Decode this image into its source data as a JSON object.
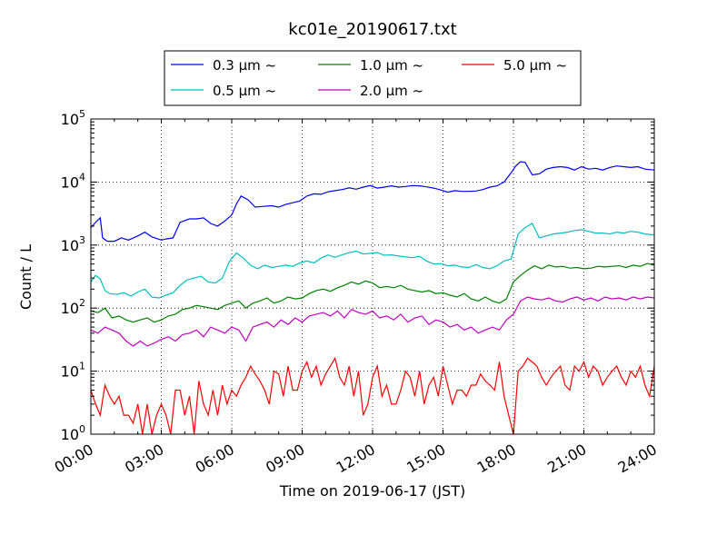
{
  "chart_data": {
    "type": "line",
    "title": "kc01e_20190617.txt",
    "xlabel": "Time on 2019-06-17 (JST)",
    "ylabel": "Count / L",
    "yscale": "log",
    "ylim": [
      1,
      100000
    ],
    "xlim_hours": [
      0,
      24
    ],
    "x_ticks": [
      "00:00",
      "03:00",
      "06:00",
      "09:00",
      "12:00",
      "15:00",
      "18:00",
      "21:00",
      "24:00"
    ],
    "y_ticks": [
      {
        "value": 1,
        "base": "10",
        "exp": "0"
      },
      {
        "value": 10,
        "base": "10",
        "exp": "1"
      },
      {
        "value": 100,
        "base": "10",
        "exp": "2"
      },
      {
        "value": 1000,
        "base": "10",
        "exp": "3"
      },
      {
        "value": 10000,
        "base": "10",
        "exp": "4"
      },
      {
        "value": 100000,
        "base": "10",
        "exp": "5"
      }
    ],
    "grid": true,
    "legend_position": "top-center",
    "series": [
      {
        "name": "0.3 μm ~",
        "color": "#0000ff",
        "x": [
          0,
          0.25,
          0.4,
          0.5,
          0.7,
          1.0,
          1.3,
          1.6,
          2.0,
          2.3,
          2.6,
          3.0,
          3.2,
          3.5,
          3.8,
          4.2,
          4.5,
          4.8,
          5.1,
          5.4,
          5.7,
          6.0,
          6.2,
          6.4,
          6.7,
          7.0,
          7.3,
          7.7,
          8.0,
          8.3,
          8.6,
          8.9,
          9.2,
          9.5,
          9.8,
          10.1,
          10.4,
          10.7,
          11.0,
          11.3,
          11.6,
          11.9,
          12.2,
          12.5,
          12.8,
          13.1,
          13.4,
          13.7,
          14.0,
          14.3,
          14.6,
          14.9,
          15.2,
          15.5,
          15.8,
          16.1,
          16.4,
          16.7,
          17.0,
          17.3,
          17.6,
          17.9,
          18.1,
          18.3,
          18.5,
          18.8,
          19.1,
          19.4,
          19.7,
          20.0,
          20.3,
          20.6,
          20.9,
          21.2,
          21.5,
          21.8,
          22.1,
          22.4,
          22.7,
          23.0,
          23.3,
          23.6,
          24.0
        ],
        "y": [
          1900,
          2400,
          2700,
          1300,
          1150,
          1150,
          1300,
          1200,
          1400,
          1600,
          1350,
          1200,
          1250,
          1300,
          2300,
          2600,
          2600,
          2700,
          2200,
          2000,
          2400,
          3000,
          4500,
          6000,
          5200,
          4000,
          4100,
          4200,
          4000,
          4400,
          4700,
          5000,
          6000,
          6500,
          6400,
          7000,
          7300,
          7600,
          8100,
          7700,
          8300,
          8800,
          8000,
          8300,
          8700,
          8300,
          8500,
          8800,
          8700,
          8400,
          8000,
          7500,
          6900,
          7300,
          7100,
          7100,
          7200,
          7600,
          8300,
          8700,
          10000,
          14000,
          18000,
          21000,
          20500,
          13000,
          13500,
          16000,
          17000,
          17500,
          17000,
          15500,
          17500,
          16000,
          16500,
          15500,
          17000,
          18000,
          17500,
          17000,
          17500,
          16000,
          15500
        ]
      },
      {
        "name": "0.5 μm ~",
        "color": "#00bfbf",
        "x": [
          0,
          0.2,
          0.4,
          0.6,
          0.8,
          1.1,
          1.4,
          1.7,
          2.0,
          2.3,
          2.6,
          2.9,
          3.2,
          3.5,
          3.8,
          4.1,
          4.4,
          4.7,
          5.0,
          5.3,
          5.6,
          5.9,
          6.2,
          6.5,
          6.8,
          7.1,
          7.4,
          7.7,
          8.0,
          8.3,
          8.6,
          8.9,
          9.2,
          9.5,
          9.8,
          10.1,
          10.4,
          10.7,
          11.0,
          11.3,
          11.6,
          11.9,
          12.2,
          12.5,
          12.8,
          13.1,
          13.4,
          13.7,
          14.0,
          14.3,
          14.6,
          14.9,
          15.2,
          15.5,
          15.8,
          16.1,
          16.4,
          16.7,
          17.0,
          17.3,
          17.6,
          17.9,
          18.2,
          18.5,
          18.8,
          19.1,
          19.4,
          19.7,
          20.0,
          20.3,
          20.6,
          20.9,
          21.2,
          21.5,
          21.8,
          22.1,
          22.4,
          22.7,
          23.0,
          23.3,
          23.6,
          24.0
        ],
        "y": [
          260,
          330,
          290,
          190,
          170,
          165,
          175,
          155,
          180,
          200,
          150,
          145,
          160,
          175,
          230,
          280,
          300,
          320,
          260,
          250,
          300,
          550,
          750,
          620,
          480,
          420,
          480,
          440,
          460,
          480,
          460,
          520,
          560,
          520,
          620,
          700,
          640,
          700,
          760,
          800,
          720,
          740,
          760,
          690,
          700,
          670,
          650,
          630,
          660,
          560,
          500,
          510,
          470,
          480,
          450,
          440,
          490,
          440,
          420,
          470,
          560,
          600,
          1500,
          1900,
          2200,
          1300,
          1400,
          1500,
          1550,
          1600,
          1700,
          1750,
          1650,
          1550,
          1550,
          1500,
          1600,
          1550,
          1650,
          1600,
          1500,
          1450
        ]
      },
      {
        "name": "1.0 μm ~",
        "color": "#008000",
        "x": [
          0,
          0.3,
          0.6,
          0.9,
          1.2,
          1.5,
          1.8,
          2.1,
          2.4,
          2.7,
          3.0,
          3.3,
          3.6,
          3.9,
          4.2,
          4.5,
          4.8,
          5.1,
          5.4,
          5.7,
          6.0,
          6.3,
          6.6,
          6.9,
          7.2,
          7.5,
          7.8,
          8.1,
          8.4,
          8.7,
          9.0,
          9.3,
          9.6,
          9.9,
          10.2,
          10.5,
          10.8,
          11.1,
          11.4,
          11.7,
          12.0,
          12.3,
          12.6,
          12.9,
          13.2,
          13.5,
          13.8,
          14.1,
          14.4,
          14.7,
          15.0,
          15.3,
          15.6,
          15.9,
          16.2,
          16.5,
          16.8,
          17.1,
          17.4,
          17.7,
          18.0,
          18.3,
          18.6,
          18.9,
          19.2,
          19.5,
          19.8,
          20.1,
          20.4,
          20.7,
          21.0,
          21.3,
          21.6,
          21.9,
          22.2,
          22.5,
          22.8,
          23.1,
          23.4,
          23.7,
          24.0
        ],
        "y": [
          90,
          85,
          100,
          70,
          75,
          65,
          60,
          65,
          70,
          60,
          65,
          75,
          80,
          95,
          100,
          110,
          105,
          100,
          95,
          110,
          120,
          130,
          100,
          120,
          130,
          145,
          120,
          130,
          150,
          140,
          145,
          170,
          190,
          200,
          185,
          210,
          230,
          260,
          240,
          270,
          250,
          210,
          220,
          210,
          230,
          200,
          190,
          180,
          190,
          170,
          175,
          160,
          150,
          170,
          140,
          130,
          150,
          130,
          120,
          140,
          260,
          330,
          400,
          470,
          420,
          480,
          450,
          460,
          430,
          440,
          420,
          430,
          460,
          450,
          460,
          470,
          440,
          480,
          460,
          510,
          480
        ]
      },
      {
        "name": "2.0 μm ~",
        "color": "#bf00bf",
        "x": [
          0,
          0.3,
          0.6,
          0.9,
          1.2,
          1.5,
          1.8,
          2.1,
          2.4,
          2.7,
          3.0,
          3.3,
          3.6,
          3.9,
          4.2,
          4.5,
          4.8,
          5.1,
          5.4,
          5.7,
          6.0,
          6.3,
          6.6,
          6.9,
          7.2,
          7.5,
          7.8,
          8.1,
          8.4,
          8.7,
          9.0,
          9.3,
          9.6,
          9.9,
          10.2,
          10.5,
          10.8,
          11.1,
          11.4,
          11.7,
          12.0,
          12.3,
          12.6,
          12.9,
          13.2,
          13.5,
          13.8,
          14.1,
          14.4,
          14.7,
          15.0,
          15.3,
          15.6,
          15.9,
          16.2,
          16.5,
          16.8,
          17.1,
          17.4,
          17.7,
          18.0,
          18.3,
          18.6,
          18.9,
          19.2,
          19.5,
          19.8,
          20.1,
          20.4,
          20.7,
          21.0,
          21.3,
          21.6,
          21.9,
          22.2,
          22.5,
          22.8,
          23.1,
          23.4,
          23.7,
          24.0
        ],
        "y": [
          45,
          40,
          50,
          45,
          40,
          30,
          25,
          30,
          25,
          28,
          32,
          35,
          30,
          38,
          40,
          45,
          35,
          50,
          45,
          40,
          50,
          45,
          30,
          50,
          55,
          60,
          50,
          65,
          55,
          70,
          60,
          75,
          80,
          85,
          75,
          90,
          70,
          95,
          85,
          80,
          90,
          70,
          75,
          65,
          80,
          60,
          70,
          75,
          55,
          65,
          60,
          50,
          55,
          45,
          50,
          40,
          45,
          50,
          45,
          65,
          80,
          130,
          150,
          140,
          135,
          145,
          130,
          125,
          140,
          150,
          135,
          145,
          130,
          150,
          140,
          145,
          135,
          150,
          140,
          150,
          145
        ]
      },
      {
        "name": "5.0 μm ~",
        "color": "#ff0000",
        "x": [
          0,
          0.2,
          0.4,
          0.6,
          0.8,
          1.0,
          1.2,
          1.4,
          1.6,
          1.8,
          2.0,
          2.2,
          2.4,
          2.6,
          2.8,
          3.0,
          3.2,
          3.4,
          3.6,
          3.8,
          4.0,
          4.2,
          4.4,
          4.6,
          4.8,
          5.0,
          5.2,
          5.4,
          5.6,
          5.8,
          6.0,
          6.2,
          6.4,
          6.6,
          6.8,
          7.0,
          7.2,
          7.4,
          7.6,
          7.8,
          8.0,
          8.2,
          8.4,
          8.6,
          8.8,
          9.0,
          9.2,
          9.4,
          9.6,
          9.8,
          10.0,
          10.2,
          10.4,
          10.6,
          10.8,
          11.0,
          11.2,
          11.4,
          11.6,
          11.8,
          12.0,
          12.2,
          12.4,
          12.6,
          12.8,
          13.0,
          13.2,
          13.4,
          13.6,
          13.8,
          14.0,
          14.2,
          14.4,
          14.6,
          14.8,
          15.0,
          15.2,
          15.4,
          15.6,
          15.8,
          16.0,
          16.2,
          16.4,
          16.6,
          16.8,
          17.0,
          17.2,
          17.4,
          17.6,
          17.8,
          18.0,
          18.2,
          18.4,
          18.6,
          18.8,
          19.0,
          19.2,
          19.4,
          19.6,
          19.8,
          20.0,
          20.2,
          20.4,
          20.6,
          20.8,
          21.0,
          21.2,
          21.4,
          21.6,
          21.8,
          22.0,
          22.2,
          22.4,
          22.6,
          22.8,
          23.0,
          23.2,
          23.4,
          23.6,
          23.8,
          24.0
        ],
        "y": [
          5,
          3,
          2,
          6,
          4,
          3,
          4,
          2,
          2,
          1.5,
          3,
          1,
          3,
          1,
          2,
          3,
          2,
          1,
          5,
          5,
          2,
          4,
          1,
          7,
          3,
          2,
          5,
          2,
          6,
          3,
          5,
          4,
          6,
          8,
          12,
          9,
          7,
          5,
          3,
          10,
          9,
          4,
          12,
          5,
          5,
          10,
          14,
          8,
          12,
          6,
          9,
          12,
          16,
          8,
          6,
          12,
          4,
          10,
          2,
          3,
          8,
          12,
          4,
          6,
          3,
          3,
          5,
          10,
          8,
          4,
          10,
          3,
          6,
          8,
          4,
          12,
          6,
          3,
          5,
          5,
          4,
          6,
          6,
          9,
          7,
          6,
          5,
          14,
          4,
          2,
          1,
          10,
          12,
          16,
          14,
          12,
          8,
          6,
          8,
          10,
          12,
          6,
          5,
          12,
          10,
          14,
          8,
          12,
          10,
          6,
          8,
          10,
          12,
          8,
          6,
          10,
          8,
          12,
          6,
          4,
          12
        ]
      }
    ]
  },
  "legend_tilde": "~"
}
